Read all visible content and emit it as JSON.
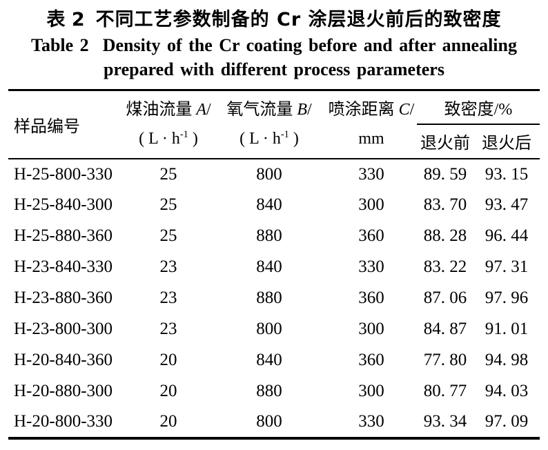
{
  "caption": {
    "zh_label": "表 2",
    "zh_title": "不同工艺参数制备的 Cr 涂层退火前后的致密度",
    "en_label": "Table 2",
    "en_line1": "Density of the Cr coating before and after annealing",
    "en_line2": "prepared with different process parameters"
  },
  "table": {
    "col1_header": "样品编号",
    "headers": [
      {
        "label": "煤油流量",
        "var": "A",
        "slash": "/",
        "unit_pre": "( L · h",
        "unit_sup": "-1",
        "unit_post": " )"
      },
      {
        "label": "氧气流量",
        "var": "B",
        "slash": "/",
        "unit_pre": "( L · h",
        "unit_sup": "-1",
        "unit_post": " )"
      },
      {
        "label": "喷涂距离",
        "var": "C",
        "slash": "/",
        "unit": "mm"
      }
    ],
    "group_header": "致密度/%",
    "sub_headers": [
      "退火前",
      "退火后"
    ],
    "rows": [
      [
        "H-25-800-330",
        "25",
        "800",
        "330",
        "89. 59",
        "93. 15"
      ],
      [
        "H-25-840-300",
        "25",
        "840",
        "300",
        "83. 70",
        "93. 47"
      ],
      [
        "H-25-880-360",
        "25",
        "880",
        "360",
        "88. 28",
        "96. 44"
      ],
      [
        "H-23-840-330",
        "23",
        "840",
        "330",
        "83. 22",
        "97. 31"
      ],
      [
        "H-23-880-360",
        "23",
        "880",
        "360",
        "87. 06",
        "97. 96"
      ],
      [
        "H-23-800-300",
        "23",
        "800",
        "300",
        "84. 87",
        "91. 01"
      ],
      [
        "H-20-840-360",
        "20",
        "840",
        "360",
        "77. 80",
        "94. 98"
      ],
      [
        "H-20-880-300",
        "20",
        "880",
        "300",
        "80. 77",
        "94. 03"
      ],
      [
        "H-20-800-330",
        "20",
        "800",
        "330",
        "93. 34",
        "97. 09"
      ]
    ]
  },
  "colors": {
    "text": "#000000",
    "background": "#ffffff",
    "rule": "#000000"
  }
}
